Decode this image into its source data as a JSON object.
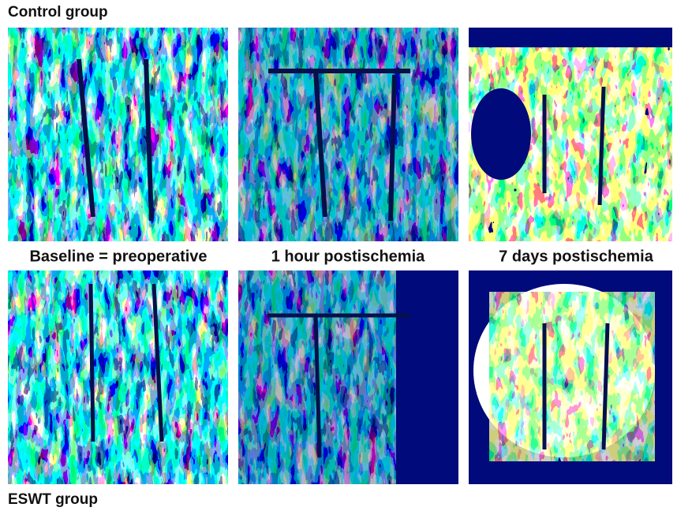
{
  "header": {
    "title": "Control group"
  },
  "panels": {
    "labels": [
      "Baseline = preoperative",
      "1 hour postischemia",
      "7 days postischemia"
    ]
  },
  "footer": {
    "title": "ESWT group"
  }
}
